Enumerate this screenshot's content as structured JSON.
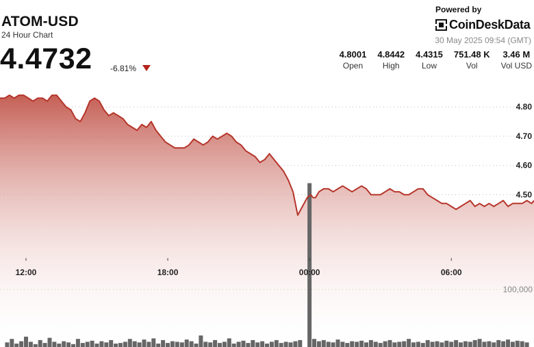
{
  "header": {
    "title": "ATOM-USD",
    "subtitle": "24 Hour Chart",
    "price": "4.4732",
    "change": "-6.81%",
    "change_direction_icon": "triangle-down-icon",
    "powered_by": "Powered by",
    "brand": "CoinDeskData",
    "timestamp": "30 May 2025 09:54 (GMT)"
  },
  "stats": [
    {
      "value": "4.8001",
      "label": "Open"
    },
    {
      "value": "4.8442",
      "label": "High"
    },
    {
      "value": "4.4315",
      "label": "Low"
    },
    {
      "value": "751.48 K",
      "label": "Vol"
    },
    {
      "value": "3.46 M",
      "label": "Vol USD"
    }
  ],
  "colors": {
    "line": "#b5342a",
    "fill_top": "#c2574c",
    "fill_bottom": "#ffffff",
    "volume_bar": "#666666",
    "down": "#b5231b"
  },
  "chart_data": {
    "type": "area",
    "title": "",
    "xlabel": "",
    "ylabel": "",
    "x_ticks": [
      {
        "label": "12:00",
        "t": 3
      },
      {
        "label": "18:00",
        "t": 9
      },
      {
        "label": "00:00",
        "t": 15
      },
      {
        "label": "06:00",
        "t": 21
      }
    ],
    "y_ticks": [
      4.8,
      4.7,
      4.6,
      4.5
    ],
    "y_tick_labels": [
      "4.80",
      "4.70",
      "4.60",
      "4.50"
    ],
    "volume_tick_label": "100,000",
    "volume_tick_value": 100000,
    "ylim": [
      4.3,
      4.88
    ],
    "xlim": [
      1.9,
      24.5
    ],
    "grid": true,
    "series": [
      {
        "values_t": [
          1.9,
          2.1,
          2.3,
          2.5,
          2.7,
          2.9,
          3.1,
          3.3,
          3.5,
          3.7,
          3.9,
          4.1,
          4.3,
          4.5,
          4.7,
          4.9,
          5.1,
          5.3,
          5.5,
          5.7,
          5.9,
          6.1,
          6.3,
          6.5,
          6.7,
          6.9,
          7.1,
          7.3,
          7.5,
          7.7,
          7.9,
          8.1,
          8.3,
          8.5,
          8.7,
          8.9,
          9.1,
          9.3,
          9.5,
          9.7,
          9.9,
          10.1,
          10.3,
          10.5,
          10.7,
          10.9,
          11.1,
          11.3,
          11.5,
          11.7,
          11.9,
          12.1,
          12.3,
          12.5,
          12.7,
          12.9,
          13.1,
          13.3,
          13.5,
          13.7,
          13.9,
          14.1,
          14.3,
          14.5,
          14.7,
          14.9,
          15.05,
          15.15,
          15.25,
          15.4,
          15.6,
          15.8,
          16.0,
          16.2,
          16.4,
          16.6,
          16.8,
          17.0,
          17.2,
          17.4,
          17.6,
          17.8,
          18.0,
          18.2,
          18.4,
          18.6,
          18.8,
          19.0,
          19.2,
          19.4,
          19.6,
          19.8,
          20.0,
          20.2,
          20.4,
          20.6,
          20.8,
          21.0,
          21.2,
          21.4,
          21.6,
          21.8,
          22.0,
          22.2,
          22.4,
          22.6,
          22.8,
          23.0,
          23.2,
          23.4,
          23.6,
          23.8,
          24.0,
          24.2,
          24.4,
          24.5
        ],
        "values": [
          4.83,
          4.83,
          4.84,
          4.83,
          4.84,
          4.84,
          4.83,
          4.82,
          4.83,
          4.83,
          4.82,
          4.84,
          4.84,
          4.82,
          4.8,
          4.79,
          4.76,
          4.75,
          4.78,
          4.82,
          4.83,
          4.82,
          4.79,
          4.77,
          4.78,
          4.77,
          4.76,
          4.74,
          4.73,
          4.72,
          4.74,
          4.73,
          4.75,
          4.72,
          4.7,
          4.68,
          4.67,
          4.66,
          4.66,
          4.66,
          4.67,
          4.69,
          4.68,
          4.67,
          4.68,
          4.7,
          4.69,
          4.7,
          4.71,
          4.7,
          4.68,
          4.67,
          4.65,
          4.64,
          4.63,
          4.61,
          4.62,
          4.64,
          4.62,
          4.6,
          4.58,
          4.55,
          4.51,
          4.43,
          4.46,
          4.49,
          4.5,
          4.49,
          4.49,
          4.51,
          4.52,
          4.52,
          4.51,
          4.52,
          4.53,
          4.52,
          4.51,
          4.52,
          4.53,
          4.52,
          4.5,
          4.5,
          4.5,
          4.51,
          4.52,
          4.51,
          4.51,
          4.5,
          4.5,
          4.51,
          4.52,
          4.52,
          4.5,
          4.49,
          4.48,
          4.47,
          4.47,
          4.46,
          4.45,
          4.46,
          4.47,
          4.48,
          4.46,
          4.47,
          4.46,
          4.47,
          4.46,
          4.47,
          4.48,
          4.46,
          4.47,
          4.47,
          4.47,
          4.48,
          4.47,
          4.48
        ]
      }
    ],
    "volume": {
      "values_t": [
        2.2,
        2.4,
        2.6,
        2.8,
        3.0,
        3.2,
        3.4,
        3.6,
        3.8,
        4.0,
        4.2,
        4.4,
        4.6,
        4.8,
        5.0,
        5.2,
        5.4,
        5.6,
        5.8,
        6.0,
        6.2,
        6.4,
        6.6,
        6.8,
        7.0,
        7.2,
        7.4,
        7.6,
        7.8,
        8.0,
        8.2,
        8.4,
        8.6,
        8.8,
        9.0,
        9.2,
        9.4,
        9.6,
        9.8,
        10.0,
        10.2,
        10.4,
        10.6,
        10.8,
        11.0,
        11.2,
        11.4,
        11.6,
        11.8,
        12.0,
        12.2,
        12.4,
        12.6,
        12.8,
        13.0,
        13.2,
        13.4,
        13.6,
        13.8,
        14.0,
        14.2,
        14.4,
        14.6,
        15.0,
        15.2,
        15.4,
        15.6,
        15.8,
        16.0,
        16.2,
        16.4,
        16.6,
        16.8,
        17.0,
        17.2,
        17.4,
        17.6,
        17.8,
        18.0,
        18.2,
        18.4,
        18.6,
        18.8,
        19.0,
        19.2,
        19.4,
        19.6,
        19.8,
        20.0,
        20.2,
        20.4,
        20.6,
        20.8,
        21.0,
        21.2,
        21.4,
        21.6,
        21.8,
        22.0,
        22.2,
        22.4,
        22.6,
        22.8,
        23.0,
        23.2,
        23.4,
        23.6,
        23.8,
        24.0,
        24.2
      ],
      "values": [
        8000,
        14000,
        6000,
        10000,
        18000,
        9000,
        5000,
        12000,
        7000,
        16000,
        9000,
        6000,
        10000,
        8000,
        5000,
        14000,
        7000,
        9000,
        11000,
        6000,
        10000,
        8000,
        12000,
        6000,
        7000,
        9000,
        14000,
        10000,
        8000,
        13000,
        9000,
        15000,
        6000,
        12000,
        7000,
        10000,
        9000,
        8000,
        13000,
        10000,
        6000,
        20000,
        9000,
        8000,
        12000,
        7000,
        9000,
        15000,
        6000,
        9000,
        11000,
        7000,
        12000,
        8000,
        10000,
        6000,
        9000,
        12000,
        7000,
        9000,
        8000,
        10000,
        12000,
        285000,
        14000,
        10000,
        12000,
        9000,
        8000,
        13000,
        9000,
        7000,
        10000,
        9000,
        11000,
        8000,
        12000,
        9000,
        7000,
        10000,
        12000,
        8000,
        9000,
        10000,
        14000,
        8000,
        9000,
        7000,
        12000,
        9000,
        10000,
        8000,
        11000,
        9000,
        12000,
        8000,
        10000,
        9000,
        12000,
        14000,
        9000,
        10000,
        8000,
        12000,
        10000,
        13000,
        9000,
        11000,
        10000,
        8000
      ]
    }
  }
}
